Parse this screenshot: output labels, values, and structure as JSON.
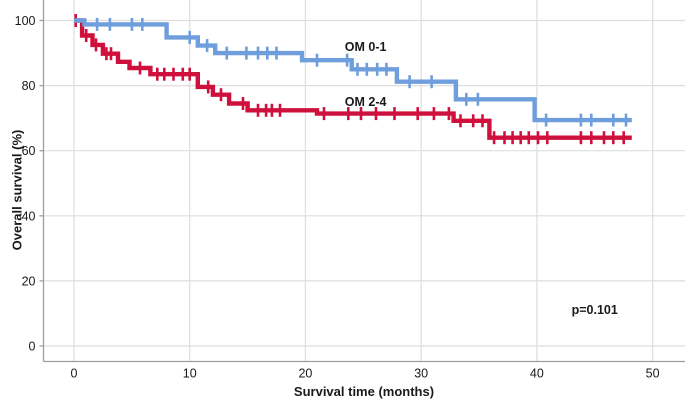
{
  "colors": {
    "background": "#FFFFFF",
    "grid": "#DEDEDE",
    "axis": "#9E9E9E",
    "text": "#1A1A1A",
    "series_blue": "#6E9EDB",
    "series_red": "#D0103C"
  },
  "chart_data": {
    "type": "line",
    "subtype": "kaplan-meier-step",
    "title": "",
    "xlabel": "Survival time (months)",
    "ylabel": "Overall survival (%)",
    "xticks": [
      0,
      10,
      20,
      30,
      40,
      50
    ],
    "yticks": [
      0,
      20,
      40,
      60,
      80,
      100
    ],
    "xlim": [
      -2.7,
      52.8
    ],
    "ylim": [
      -4.8,
      106.3
    ],
    "grid": true,
    "legend_position": "inline-curve-labels",
    "annotations": [
      {
        "text": "p=0.101",
        "x": 45.0,
        "y": 11.0
      }
    ],
    "series": [
      {
        "name": "OM 2-4",
        "color": "#D0103C",
        "label_pos": {
          "x": 25.2,
          "y": 75.0
        },
        "steps": [
          [
            0,
            100
          ],
          [
            0.7,
            95.4
          ],
          [
            1.6,
            92.5
          ],
          [
            2.5,
            89.8
          ],
          [
            3.8,
            87.3
          ],
          [
            4.8,
            85.4
          ],
          [
            6.6,
            83.5
          ],
          [
            10.7,
            79.6
          ],
          [
            12,
            77.2
          ],
          [
            13.4,
            74.5
          ],
          [
            15,
            72.4
          ],
          [
            21,
            71.4
          ],
          [
            32.8,
            69.2
          ],
          [
            35.9,
            64
          ],
          [
            48.2,
            64
          ]
        ],
        "censors": [
          [
            0.15,
            100
          ],
          [
            1.05,
            95.4
          ],
          [
            1.9,
            92.5
          ],
          [
            2.8,
            89.8
          ],
          [
            3.2,
            89.8
          ],
          [
            5.7,
            85.4
          ],
          [
            7.2,
            83.5
          ],
          [
            7.8,
            83.5
          ],
          [
            8.6,
            83.5
          ],
          [
            9.4,
            83.5
          ],
          [
            10,
            83.5
          ],
          [
            11.6,
            79.6
          ],
          [
            12.7,
            77.2
          ],
          [
            14.6,
            74.5
          ],
          [
            15.9,
            72.4
          ],
          [
            16.6,
            72.4
          ],
          [
            17.1,
            72.4
          ],
          [
            17.8,
            72.4
          ],
          [
            21.6,
            71.4
          ],
          [
            23.7,
            71.4
          ],
          [
            24.8,
            71.4
          ],
          [
            26.1,
            71.4
          ],
          [
            27.7,
            71.4
          ],
          [
            29.7,
            71.4
          ],
          [
            31.1,
            71.4
          ],
          [
            32.4,
            71.4
          ],
          [
            33.4,
            69.2
          ],
          [
            34.5,
            69.2
          ],
          [
            35.3,
            69.2
          ],
          [
            36.3,
            64
          ],
          [
            37.2,
            64
          ],
          [
            37.9,
            64
          ],
          [
            38.6,
            64
          ],
          [
            39.3,
            64
          ],
          [
            40.1,
            64
          ],
          [
            40.9,
            64
          ],
          [
            43.8,
            64
          ],
          [
            44.7,
            64
          ],
          [
            45.8,
            64
          ],
          [
            46.6,
            64
          ],
          [
            47.5,
            64
          ]
        ]
      },
      {
        "name": "OM 0-1",
        "color": "#6E9EDB",
        "label_pos": {
          "x": 25.2,
          "y": 92.0
        },
        "steps": [
          [
            0,
            100
          ],
          [
            0.9,
            98.8
          ],
          [
            8,
            94.8
          ],
          [
            10.7,
            92.3
          ],
          [
            12.2,
            90
          ],
          [
            19.7,
            87.8
          ],
          [
            24,
            85
          ],
          [
            27.9,
            81.2
          ],
          [
            33,
            75.8
          ],
          [
            39.8,
            69.4
          ],
          [
            48.2,
            69.4
          ]
        ],
        "censors": [
          [
            2,
            98.8
          ],
          [
            3.1,
            98.8
          ],
          [
            5,
            98.8
          ],
          [
            5.9,
            98.8
          ],
          [
            10,
            94.8
          ],
          [
            11.5,
            92.3
          ],
          [
            13.2,
            90
          ],
          [
            14.9,
            90
          ],
          [
            15.9,
            90
          ],
          [
            16.7,
            90
          ],
          [
            17.5,
            90
          ],
          [
            21,
            87.8
          ],
          [
            23.6,
            87.8
          ],
          [
            24.5,
            85
          ],
          [
            25.3,
            85
          ],
          [
            26.2,
            85
          ],
          [
            27,
            85
          ],
          [
            29,
            81.2
          ],
          [
            30.9,
            81.2
          ],
          [
            33.9,
            75.8
          ],
          [
            34.9,
            75.8
          ],
          [
            40.8,
            69.4
          ],
          [
            43.8,
            69.4
          ],
          [
            44.7,
            69.4
          ],
          [
            46.6,
            69.4
          ],
          [
            47.7,
            69.4
          ]
        ]
      }
    ]
  }
}
